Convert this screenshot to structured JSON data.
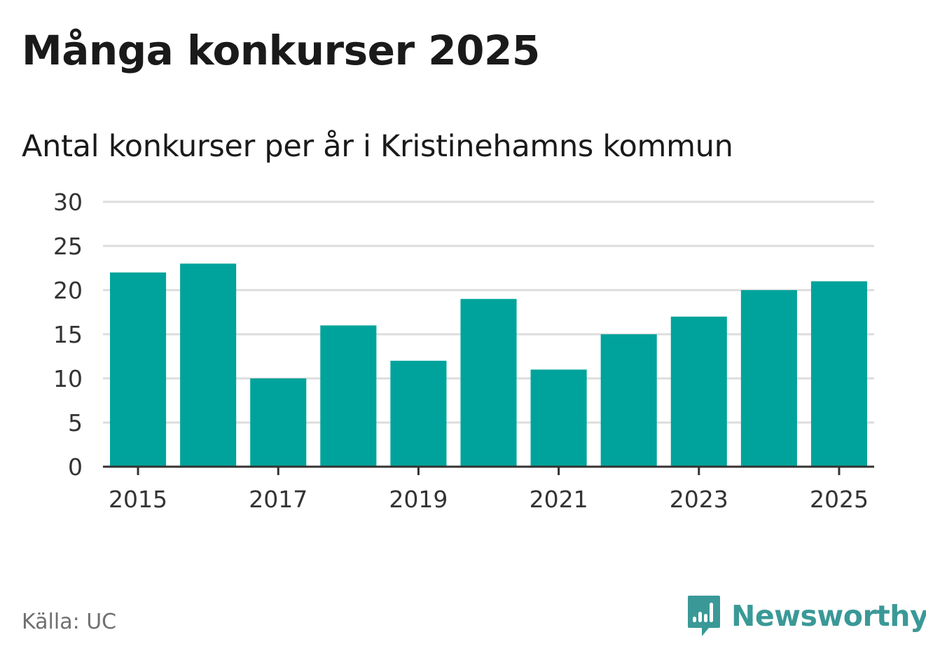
{
  "header": {
    "title": "Många konkurser 2025",
    "subtitle": "Antal konkurser per år i Kristinehamns kommun"
  },
  "footer": {
    "source": "Källa: UC",
    "brand": "Newsworthy",
    "brand_icon": "newsworthy-logo-icon",
    "brand_color": "#3a9997"
  },
  "chart_data": {
    "type": "bar",
    "categories": [
      "2015",
      "2016",
      "2017",
      "2018",
      "2019",
      "2020",
      "2021",
      "2022",
      "2023",
      "2024",
      "2025"
    ],
    "values": [
      22,
      23,
      10,
      16,
      12,
      19,
      11,
      15,
      17,
      20,
      21
    ],
    "x_tick_labels": [
      "2015",
      "2017",
      "2019",
      "2021",
      "2023",
      "2025"
    ],
    "y_ticks": [
      0,
      5,
      10,
      15,
      20,
      25,
      30
    ],
    "ylim": [
      0,
      30
    ],
    "grid": true,
    "bar_color": "#00a39b",
    "grid_color": "#dddddd",
    "axis_color": "#333333"
  }
}
